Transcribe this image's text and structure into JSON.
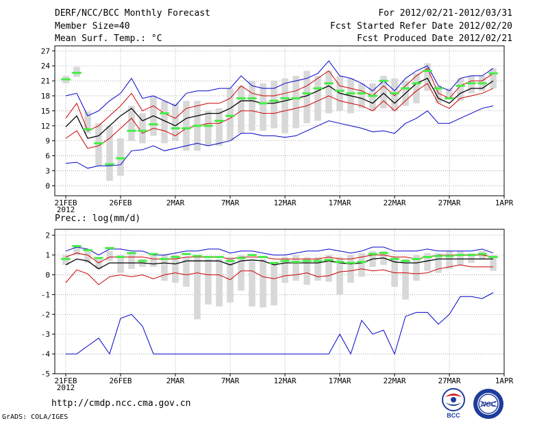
{
  "header": {
    "title": "DERF/NCC/BCC Monthly Forecast",
    "member_size": "Member Size=40",
    "variable": "Mean Surf. Temp.: °C",
    "period": "For 2012/02/21-2012/03/31",
    "fcst_started": "Fcst Started Refer Date 2012/02/20",
    "fcst_produced": "Fcst Produced Date 2012/02/21"
  },
  "footer": {
    "url": "http://cmdp.ncc.cma.gov.cn",
    "credit": "GrADS: COLA/IGES",
    "logo_left_text": "BCC",
    "logo_right_text": "NCC"
  },
  "colors": {
    "upper_lower": "#0000cc",
    "sd": "#cc0000",
    "mean": "#000000",
    "box": "#d8d8d8",
    "obs": "#44ee44"
  },
  "chart_data": [
    {
      "type": "line",
      "title": "Mean Surf. Temp.: °C",
      "x_tick_labels": [
        "21FEB",
        "26FEB",
        "2MAR",
        "7MAR",
        "12MAR",
        "17MAR",
        "22MAR",
        "27MAR",
        "1APR"
      ],
      "x_tick_days": [
        0,
        5,
        10,
        15,
        20,
        25,
        30,
        35,
        40
      ],
      "year_label": "2012",
      "xlim": [
        -1,
        40
      ],
      "ylim": [
        -2,
        28
      ],
      "yticks": [
        0,
        3,
        6,
        9,
        12,
        15,
        18,
        21,
        24,
        27
      ],
      "series": [
        {
          "name": "max",
          "color": "#0000cc",
          "values": [
            18,
            18.5,
            14,
            15,
            17,
            18.5,
            21.5,
            17.5,
            18,
            17,
            16,
            18.5,
            19,
            19,
            19.5,
            19.5,
            22,
            20,
            19.5,
            19.5,
            20.5,
            21,
            21.5,
            22.5,
            25,
            22,
            21.5,
            20.5,
            19,
            21,
            19,
            21.5,
            23,
            24,
            20,
            19,
            21.5,
            22,
            22,
            23.5
          ]
        },
        {
          "name": "mean+sd",
          "color": "#cc0000",
          "values": [
            13.5,
            16.5,
            11,
            12,
            14,
            16,
            18.5,
            15,
            16,
            14.5,
            13.5,
            15.5,
            16,
            16.5,
            16.5,
            17.5,
            20,
            18.5,
            18,
            18,
            18.5,
            19,
            20,
            21.5,
            23,
            20,
            19.5,
            19,
            18,
            20,
            18,
            20,
            22,
            23.5,
            18.5,
            17.5,
            20,
            21,
            21,
            22.5
          ]
        },
        {
          "name": "mean",
          "color": "#000000",
          "values": [
            11.8,
            14,
            9.5,
            10,
            12,
            14,
            15.5,
            13,
            14,
            13,
            12,
            13.5,
            14,
            14.5,
            14.5,
            15.5,
            17,
            17,
            16.5,
            16.5,
            17,
            17.5,
            18,
            19,
            20,
            18.5,
            18,
            17.5,
            16.5,
            18.5,
            16.5,
            18.5,
            20.5,
            21.5,
            17.5,
            16.5,
            18.5,
            19.5,
            19.5,
            21
          ]
        },
        {
          "name": "mean-sd",
          "color": "#cc0000",
          "values": [
            9.5,
            11,
            7.5,
            8,
            9.5,
            11.5,
            13.5,
            10.5,
            11.5,
            11,
            10,
            11.5,
            12,
            12.5,
            12.5,
            13.5,
            15,
            15,
            14.5,
            14.5,
            15,
            15.5,
            16,
            17,
            18,
            17,
            16.5,
            16,
            15,
            17,
            15,
            17,
            19,
            20.5,
            16.5,
            15.5,
            17.5,
            18,
            18.5,
            19.5
          ]
        },
        {
          "name": "min",
          "color": "#0000cc",
          "values": [
            4.5,
            4.7,
            3.5,
            4,
            4,
            4.2,
            7,
            7.2,
            8,
            7,
            7.5,
            8,
            8.5,
            8,
            8.5,
            9,
            10.5,
            10.5,
            10,
            10,
            9.7,
            10,
            11,
            12,
            13,
            12.5,
            12,
            11.5,
            10.8,
            11,
            10.5,
            12.5,
            13.5,
            15,
            12.5,
            12.5,
            13.5,
            14.5,
            15.5,
            16
          ]
        }
      ],
      "boxes": [
        [
          20.5,
          22
        ],
        [
          21.8,
          23.8
        ],
        [
          10.5,
          14.8
        ],
        [
          4,
          12.5
        ],
        [
          1,
          12
        ],
        [
          2,
          9.5
        ],
        [
          9,
          16
        ],
        [
          8.5,
          14.5
        ],
        [
          10,
          18
        ],
        [
          8.5,
          17
        ],
        [
          9,
          16.5
        ],
        [
          7,
          17
        ],
        [
          7,
          17
        ],
        [
          8,
          15
        ],
        [
          8,
          15.5
        ],
        [
          9,
          19.5
        ],
        [
          10.5,
          20
        ],
        [
          11,
          21
        ],
        [
          11,
          20.5
        ],
        [
          11.5,
          21
        ],
        [
          10.5,
          21.5
        ],
        [
          11.5,
          22
        ],
        [
          12.5,
          23
        ],
        [
          13,
          22
        ],
        [
          14.5,
          23
        ],
        [
          15,
          22
        ],
        [
          14.5,
          21.5
        ],
        [
          15.5,
          20.5
        ],
        [
          15,
          20.5
        ],
        [
          15.5,
          22
        ],
        [
          15,
          21.5
        ],
        [
          16,
          21
        ],
        [
          16.5,
          22.5
        ],
        [
          19,
          24.5
        ],
        [
          16.5,
          20
        ],
        [
          17.5,
          19.5
        ],
        [
          17,
          21.5
        ],
        [
          18.5,
          22
        ],
        [
          19,
          22
        ],
        [
          19.5,
          23.5
        ]
      ],
      "observed": [
        21.3,
        22.6,
        11.3,
        8.5,
        4.3,
        5.5,
        11,
        11,
        12.3,
        14.5,
        11.5,
        11.5,
        12,
        12,
        13,
        14,
        17.5,
        17.5,
        16.5,
        17,
        17.5,
        17.5,
        18.5,
        19.5,
        20.5,
        19,
        18.5,
        18.5,
        18,
        21,
        18.5,
        19.5,
        20.5,
        23,
        19.5,
        17.5,
        20,
        20.5,
        20.5,
        22.5
      ]
    },
    {
      "type": "line",
      "title": "Prec.: log(mm/d)",
      "x_tick_labels": [
        "21FEB",
        "26FEB",
        "2MAR",
        "7MAR",
        "12MAR",
        "17MAR",
        "22MAR",
        "27MAR",
        "1APR"
      ],
      "x_tick_days": [
        0,
        5,
        10,
        15,
        20,
        25,
        30,
        35,
        40
      ],
      "year_label": "2012",
      "xlim": [
        -1,
        40
      ],
      "ylim": [
        -5,
        2.3
      ],
      "yticks": [
        -5,
        -4,
        -3,
        -2,
        -1,
        0,
        1,
        2
      ],
      "series": [
        {
          "name": "max",
          "color": "#0000cc",
          "values": [
            1.2,
            1.4,
            1.3,
            1,
            1.3,
            1.3,
            1.2,
            1.2,
            1,
            1,
            1.1,
            1.2,
            1.2,
            1.3,
            1.3,
            1.1,
            1.2,
            1.2,
            1.1,
            1,
            1,
            1.1,
            1.2,
            1.2,
            1.3,
            1.2,
            1.1,
            1.2,
            1.4,
            1.4,
            1.2,
            1.2,
            1.2,
            1.3,
            1.2,
            1.2,
            1.2,
            1.2,
            1.3,
            1.1
          ]
        },
        {
          "name": "mean+sd",
          "color": "#cc0000",
          "values": [
            0.9,
            1.1,
            1,
            0.6,
            0.9,
            0.9,
            0.9,
            0.9,
            0.8,
            0.8,
            0.8,
            0.9,
            0.9,
            0.9,
            0.9,
            0.8,
            0.9,
            0.9,
            0.9,
            0.8,
            0.8,
            0.8,
            0.8,
            0.8,
            0.9,
            0.8,
            0.8,
            0.9,
            1,
            1,
            0.9,
            0.9,
            0.8,
            0.9,
            1,
            1,
            1,
            1,
            1,
            0.9
          ]
        },
        {
          "name": "mean",
          "color": "#000000",
          "values": [
            0.5,
            0.8,
            0.7,
            0.3,
            0.6,
            0.6,
            0.6,
            0.6,
            0.55,
            0.6,
            0.55,
            0.7,
            0.7,
            0.7,
            0.7,
            0.5,
            0.7,
            0.75,
            0.7,
            0.5,
            0.6,
            0.6,
            0.6,
            0.6,
            0.7,
            0.6,
            0.55,
            0.6,
            0.8,
            0.85,
            0.65,
            0.6,
            0.6,
            0.7,
            0.8,
            0.8,
            0.8,
            0.8,
            0.8,
            0.8
          ]
        },
        {
          "name": "mean-sd",
          "color": "#cc0000",
          "values": [
            -0.4,
            0.25,
            0.05,
            -0.5,
            -0.1,
            0,
            -0.1,
            0,
            -0.2,
            0,
            0.1,
            0,
            0.1,
            0,
            0,
            -0.25,
            0.2,
            0.2,
            -0.1,
            -0.2,
            -0.05,
            0,
            0.1,
            -0.1,
            -0.05,
            0.15,
            0.2,
            0.3,
            0.2,
            0.25,
            0.1,
            0.1,
            0.05,
            0.1,
            0.3,
            0.4,
            0.5,
            0.4,
            0.4,
            0.4
          ]
        },
        {
          "name": "min",
          "color": "#0000cc",
          "values": [
            -4,
            -4,
            -3.6,
            -3.2,
            -4,
            -2.2,
            -2,
            -2.6,
            -4,
            -4,
            -4,
            -4,
            -4,
            -4,
            -4,
            -4,
            -4,
            -4,
            -4,
            -4,
            -4,
            -4,
            -4,
            -4,
            -4,
            -3,
            -4,
            -2.3,
            -3,
            -2.8,
            -4,
            -2.1,
            -1.9,
            -1.9,
            -2.5,
            -2,
            -1.1,
            -1.1,
            -1.2,
            -0.9
          ]
        }
      ],
      "boxes": [
        [
          0.5,
          1
        ],
        [
          1,
          1.5
        ],
        [
          0.6,
          1.2
        ],
        [
          0.3,
          0.9
        ],
        [
          0.7,
          1.2
        ],
        [
          0.1,
          1
        ],
        [
          0.3,
          1.1
        ],
        [
          0.4,
          0.8
        ],
        [
          0.4,
          1.1
        ],
        [
          -0.3,
          1
        ],
        [
          -0.4,
          1
        ],
        [
          -0.6,
          0.9
        ],
        [
          -2.25,
          0.9
        ],
        [
          -1.5,
          0.8
        ],
        [
          -1.6,
          0.8
        ],
        [
          -1.4,
          0.9
        ],
        [
          -0.8,
          1
        ],
        [
          -1.6,
          0.7
        ],
        [
          -1.65,
          0.8
        ],
        [
          -1.55,
          0.6
        ],
        [
          -0.4,
          0.9
        ],
        [
          -0.3,
          1
        ],
        [
          -0.5,
          0.9
        ],
        [
          -0.3,
          0.9
        ],
        [
          -0.35,
          1
        ],
        [
          -1,
          0.9
        ],
        [
          -0.4,
          1
        ],
        [
          -0.1,
          1.1
        ],
        [
          0.4,
          1.2
        ],
        [
          0.5,
          1.2
        ],
        [
          -0.6,
          0.9
        ],
        [
          -1.25,
          0.8
        ],
        [
          -0.3,
          1
        ],
        [
          0.2,
          1.1
        ],
        [
          0.1,
          1.1
        ],
        [
          0.3,
          1.2
        ],
        [
          0.5,
          1.2
        ],
        [
          0.6,
          1.1
        ],
        [
          0.8,
          1.2
        ],
        [
          0.2,
          1
        ]
      ],
      "observed": [
        0.8,
        1.45,
        1.25,
        0.85,
        1.35,
        0.9,
        1.1,
        0.7,
        1.05,
        0.8,
        0.9,
        1.05,
        0.95,
        0.9,
        0.9,
        0.7,
        0.85,
        1,
        0.9,
        0.6,
        0.7,
        0.65,
        0.7,
        0.7,
        0.75,
        0.65,
        0.6,
        0.65,
        1.05,
        1.1,
        0.8,
        0.7,
        0.8,
        0.9,
        0.95,
        0.95,
        1,
        1,
        1.05,
        0.9
      ]
    }
  ]
}
